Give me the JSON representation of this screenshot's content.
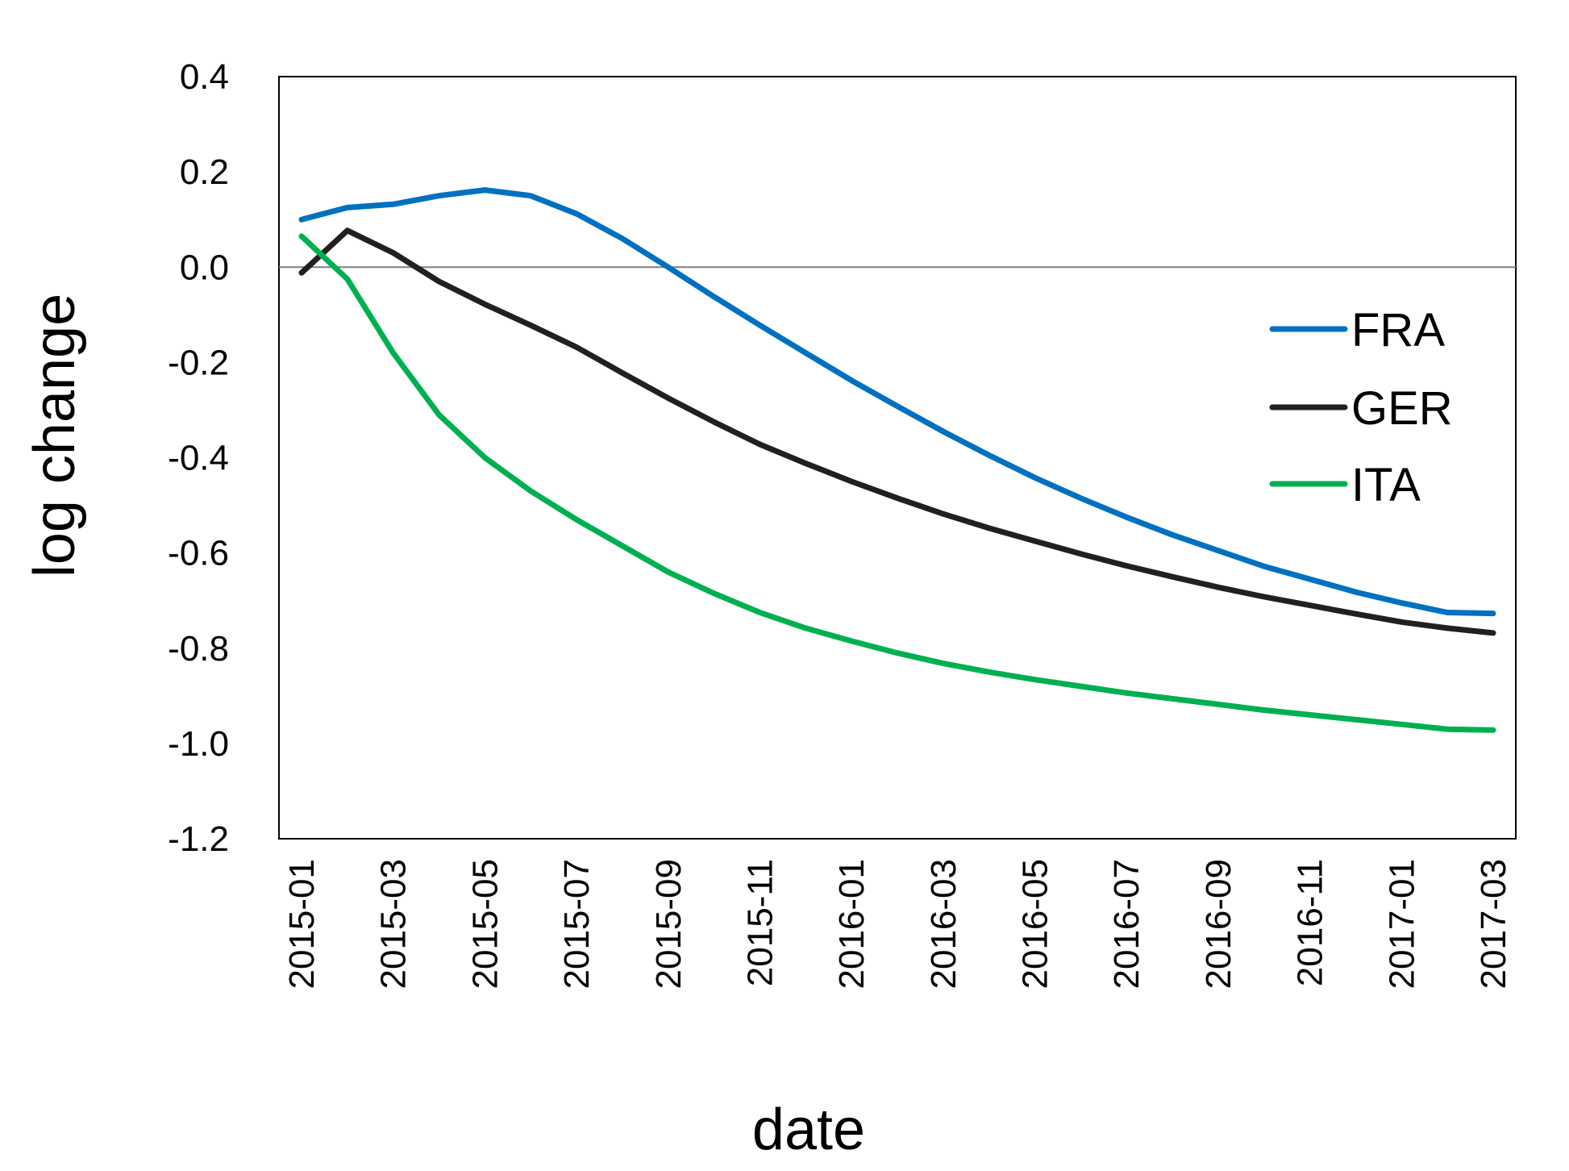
{
  "chart_data": {
    "type": "line",
    "title": "",
    "xlabel": "date",
    "ylabel": "log change",
    "x": [
      "2015-01",
      "2015-02",
      "2015-03",
      "2015-04",
      "2015-05",
      "2015-06",
      "2015-07",
      "2015-08",
      "2015-09",
      "2015-10",
      "2015-11",
      "2015-12",
      "2016-01",
      "2016-02",
      "2016-03",
      "2016-04",
      "2016-05",
      "2016-06",
      "2016-07",
      "2016-08",
      "2016-09",
      "2016-10",
      "2016-11",
      "2016-12",
      "2017-01",
      "2017-02",
      "2017-03"
    ],
    "x_tick_labels": [
      "2015-01",
      "2015-03",
      "2015-05",
      "2015-07",
      "2015-09",
      "2015-11",
      "2016-01",
      "2016-03",
      "2016-05",
      "2016-07",
      "2016-09",
      "2016-11",
      "2017-01",
      "2017-03"
    ],
    "ylim": [
      -1.2,
      0.4
    ],
    "y_ticks": [
      0.4,
      0.2,
      0.0,
      -0.2,
      -0.4,
      -0.6,
      -0.8,
      -1.0,
      -1.2
    ],
    "y_tick_labels": [
      "0.4",
      "0.2",
      "0.0",
      "-0.2",
      "-0.4",
      "-0.6",
      "-0.8",
      "-1.0",
      "-1.2"
    ],
    "reference_line_y": 0.0,
    "grid": false,
    "legend_position": "right",
    "series": [
      {
        "name": "FRA",
        "color": "#0070c0",
        "values": [
          0.1,
          0.125,
          0.132,
          0.15,
          0.162,
          0.15,
          0.112,
          0.06,
          0.0,
          -0.062,
          -0.122,
          -0.18,
          -0.238,
          -0.292,
          -0.345,
          -0.395,
          -0.442,
          -0.485,
          -0.525,
          -0.562,
          -0.595,
          -0.628,
          -0.655,
          -0.682,
          -0.705,
          -0.725,
          -0.727
        ]
      },
      {
        "name": "GER",
        "color": "#231f20",
        "values": [
          -0.012,
          0.077,
          0.03,
          -0.03,
          -0.078,
          -0.122,
          -0.168,
          -0.222,
          -0.275,
          -0.325,
          -0.372,
          -0.412,
          -0.45,
          -0.485,
          -0.518,
          -0.548,
          -0.575,
          -0.602,
          -0.627,
          -0.65,
          -0.672,
          -0.692,
          -0.71,
          -0.728,
          -0.745,
          -0.758,
          -0.768
        ]
      },
      {
        "name": "ITA",
        "color": "#00b050",
        "values": [
          0.065,
          -0.025,
          -0.18,
          -0.31,
          -0.4,
          -0.47,
          -0.53,
          -0.585,
          -0.64,
          -0.685,
          -0.725,
          -0.758,
          -0.785,
          -0.81,
          -0.832,
          -0.85,
          -0.866,
          -0.88,
          -0.894,
          -0.906,
          -0.918,
          -0.93,
          -0.94,
          -0.95,
          -0.96,
          -0.97,
          -0.972
        ]
      }
    ]
  }
}
